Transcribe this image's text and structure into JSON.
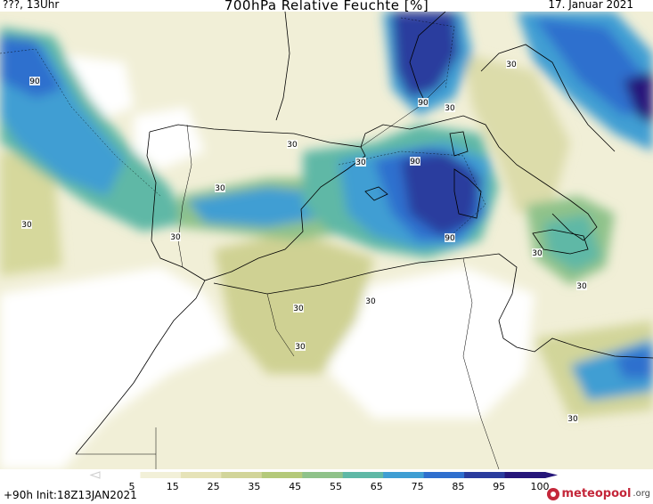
{
  "header": {
    "left": "???, 13Uhr",
    "title": "700hPa Relative Feuchte [%]",
    "date": "17. Januar 2021"
  },
  "footer": {
    "run_info": "+90h Init:18Z13JAN2021",
    "brand_main": "meteopool",
    "brand_tld": ".org"
  },
  "legend": {
    "ticks": [
      "5",
      "15",
      "25",
      "35",
      "45",
      "55",
      "65",
      "75",
      "85",
      "95",
      "100"
    ],
    "colors": [
      "#ffffff",
      "#f2f0d8",
      "#e6e3b8",
      "#d2d59a",
      "#b4c97a",
      "#8fc28a",
      "#5fb8a6",
      "#3f9ed3",
      "#2f6fce",
      "#2a3c9e",
      "#25167a"
    ]
  },
  "contour_labels": [
    {
      "text": "90"
    },
    {
      "text": "30"
    },
    {
      "text": "30"
    },
    {
      "text": "30"
    },
    {
      "text": "30"
    },
    {
      "text": "30"
    },
    {
      "text": "90"
    },
    {
      "text": "90"
    },
    {
      "text": "30"
    },
    {
      "text": "90"
    },
    {
      "text": "30"
    },
    {
      "text": "30"
    },
    {
      "text": "30"
    },
    {
      "text": "30"
    },
    {
      "text": "30"
    },
    {
      "text": "30"
    },
    {
      "text": "30"
    }
  ]
}
